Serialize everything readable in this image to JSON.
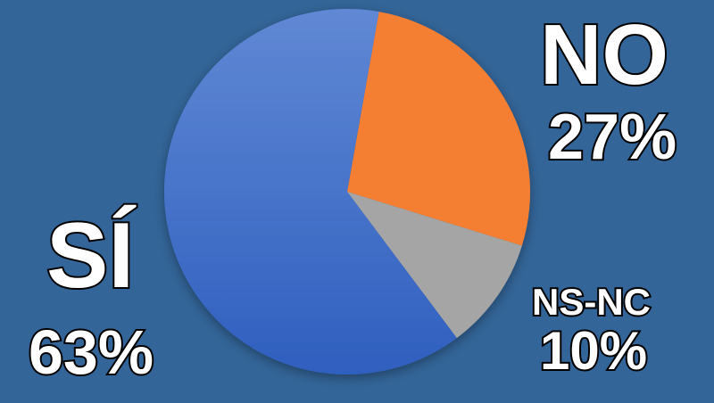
{
  "chart_data": {
    "type": "pie",
    "title": "",
    "start_angle_deg": 10,
    "direction": "clockwise",
    "slices": [
      {
        "label": "NO",
        "value": 27,
        "display": "27%",
        "color": "#f47f30"
      },
      {
        "label": "NS-NC",
        "value": 10,
        "display": "10%",
        "color": "#a5a5a5"
      },
      {
        "label": "SÍ",
        "value": 63,
        "display": "63%",
        "color": "#4472c4"
      }
    ],
    "background": "#336598"
  }
}
